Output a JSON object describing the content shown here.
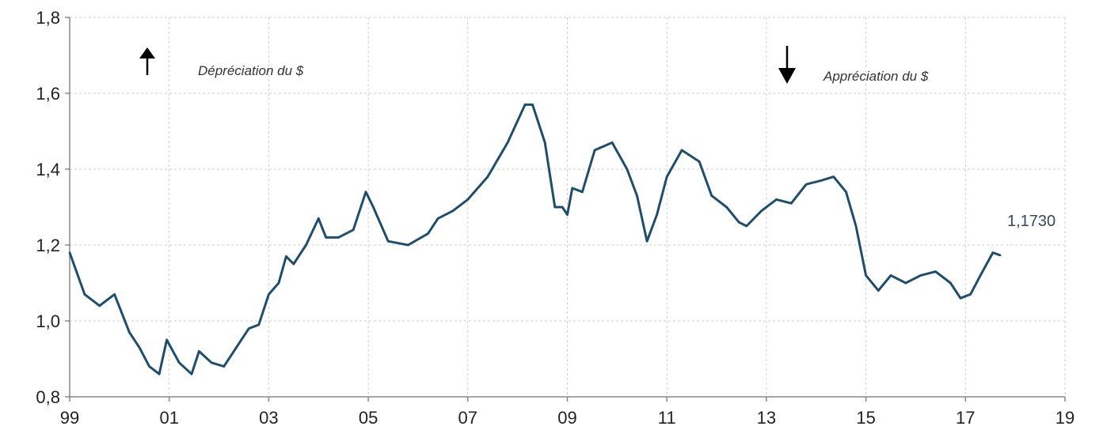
{
  "chart_data": {
    "type": "line",
    "title": "",
    "xlabel": "",
    "ylabel": "",
    "xlim": [
      1999,
      2019
    ],
    "ylim": [
      0.8,
      1.8
    ],
    "grid": true,
    "x_ticks": [
      "99",
      "01",
      "03",
      "05",
      "07",
      "09",
      "11",
      "13",
      "15",
      "17",
      "19"
    ],
    "y_ticks": [
      "0,8",
      "1,0",
      "1,2",
      "1,4",
      "1,6",
      "1,8"
    ],
    "series": [
      {
        "name": "",
        "color": "#1f4e6b",
        "x": [
          1999.0,
          1999.3,
          1999.6,
          1999.9,
          2000.2,
          2000.4,
          2000.6,
          2000.8,
          2000.95,
          2001.2,
          2001.45,
          2001.6,
          2001.85,
          2002.1,
          2002.35,
          2002.6,
          2002.8,
          2003.0,
          2003.2,
          2003.35,
          2003.5,
          2003.75,
          2004.0,
          2004.15,
          2004.4,
          2004.7,
          2004.95,
          2005.1,
          2005.4,
          2005.8,
          2006.2,
          2006.4,
          2006.7,
          2007.0,
          2007.4,
          2007.8,
          2008.15,
          2008.3,
          2008.55,
          2008.75,
          2008.9,
          2009.0,
          2009.1,
          2009.3,
          2009.55,
          2009.9,
          2010.2,
          2010.4,
          2010.6,
          2010.8,
          2011.0,
          2011.3,
          2011.65,
          2011.9,
          2012.2,
          2012.45,
          2012.6,
          2012.9,
          2013.2,
          2013.5,
          2013.8,
          2014.1,
          2014.35,
          2014.6,
          2014.8,
          2015.0,
          2015.25,
          2015.5,
          2015.8,
          2016.1,
          2016.4,
          2016.7,
          2016.9,
          2017.1,
          2017.3,
          2017.55,
          2017.7
        ],
        "y": [
          1.18,
          1.07,
          1.04,
          1.07,
          0.97,
          0.93,
          0.88,
          0.86,
          0.95,
          0.89,
          0.86,
          0.92,
          0.89,
          0.88,
          0.93,
          0.98,
          0.99,
          1.07,
          1.1,
          1.17,
          1.15,
          1.2,
          1.27,
          1.22,
          1.22,
          1.24,
          1.34,
          1.3,
          1.21,
          1.2,
          1.23,
          1.27,
          1.29,
          1.32,
          1.38,
          1.47,
          1.57,
          1.57,
          1.47,
          1.3,
          1.3,
          1.28,
          1.35,
          1.34,
          1.45,
          1.47,
          1.4,
          1.33,
          1.21,
          1.28,
          1.38,
          1.45,
          1.42,
          1.33,
          1.3,
          1.26,
          1.25,
          1.29,
          1.32,
          1.31,
          1.36,
          1.37,
          1.38,
          1.34,
          1.25,
          1.12,
          1.08,
          1.12,
          1.1,
          1.12,
          1.13,
          1.1,
          1.06,
          1.07,
          1.12,
          1.18,
          1.173
        ]
      }
    ],
    "annotations": [
      {
        "text": "Dépréciation du $",
        "arrow": "up"
      },
      {
        "text": "Appréciation du $",
        "arrow": "down"
      },
      {
        "text": "1,1730",
        "target": "last-point"
      }
    ]
  }
}
